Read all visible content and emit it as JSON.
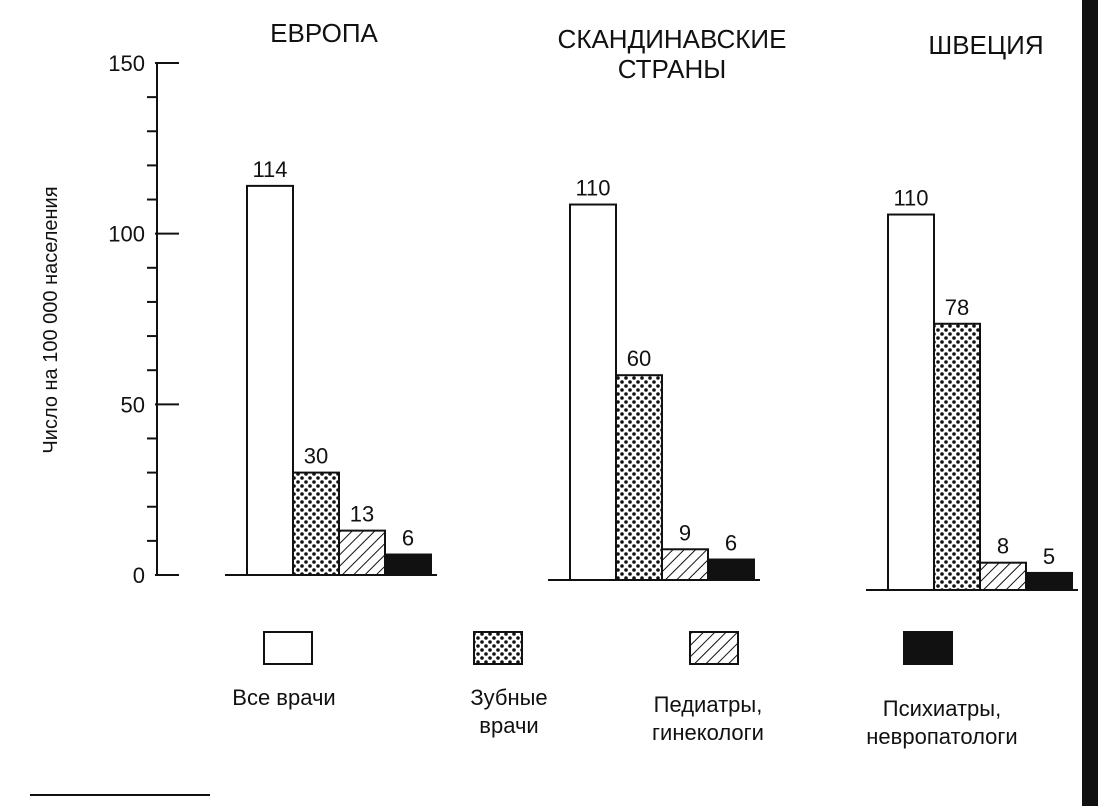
{
  "chart_data": {
    "type": "bar",
    "ylabel": "Число на 100 000 населения",
    "ylim": [
      0,
      150
    ],
    "yticks": [
      0,
      50,
      100,
      150
    ],
    "grid": false,
    "legend_placement": "bottom",
    "categories": [
      "ЕВРОПА",
      "СКАНДИНАВСКИЕ СТРАНЫ",
      "ШВЕЦИЯ"
    ],
    "category_lines": [
      [
        "ЕВРОПА"
      ],
      [
        "СКАНДИНАВСКИЕ",
        "СТРАНЫ"
      ],
      [
        "ШВЕЦИЯ"
      ]
    ],
    "series": [
      {
        "name": "Все врачи",
        "name_lines": [
          "Все врачи"
        ],
        "pattern": "empty",
        "values": [
          114,
          110,
          110
        ]
      },
      {
        "name": "Зубные врачи",
        "name_lines": [
          "Зубные",
          "врачи"
        ],
        "pattern": "dots",
        "values": [
          30,
          60,
          78
        ]
      },
      {
        "name": "Педиатры, гинекологи",
        "name_lines": [
          "Педиатры,",
          "гинекологи"
        ],
        "pattern": "hatch",
        "values": [
          13,
          9,
          8
        ]
      },
      {
        "name": "Психиатры, невропатологи",
        "name_lines": [
          "Психиатры,",
          "невропатологи"
        ],
        "pattern": "solid",
        "values": [
          6,
          6,
          5
        ]
      }
    ]
  },
  "colors": {
    "ink": "#111111",
    "background": "#ffffff"
  }
}
